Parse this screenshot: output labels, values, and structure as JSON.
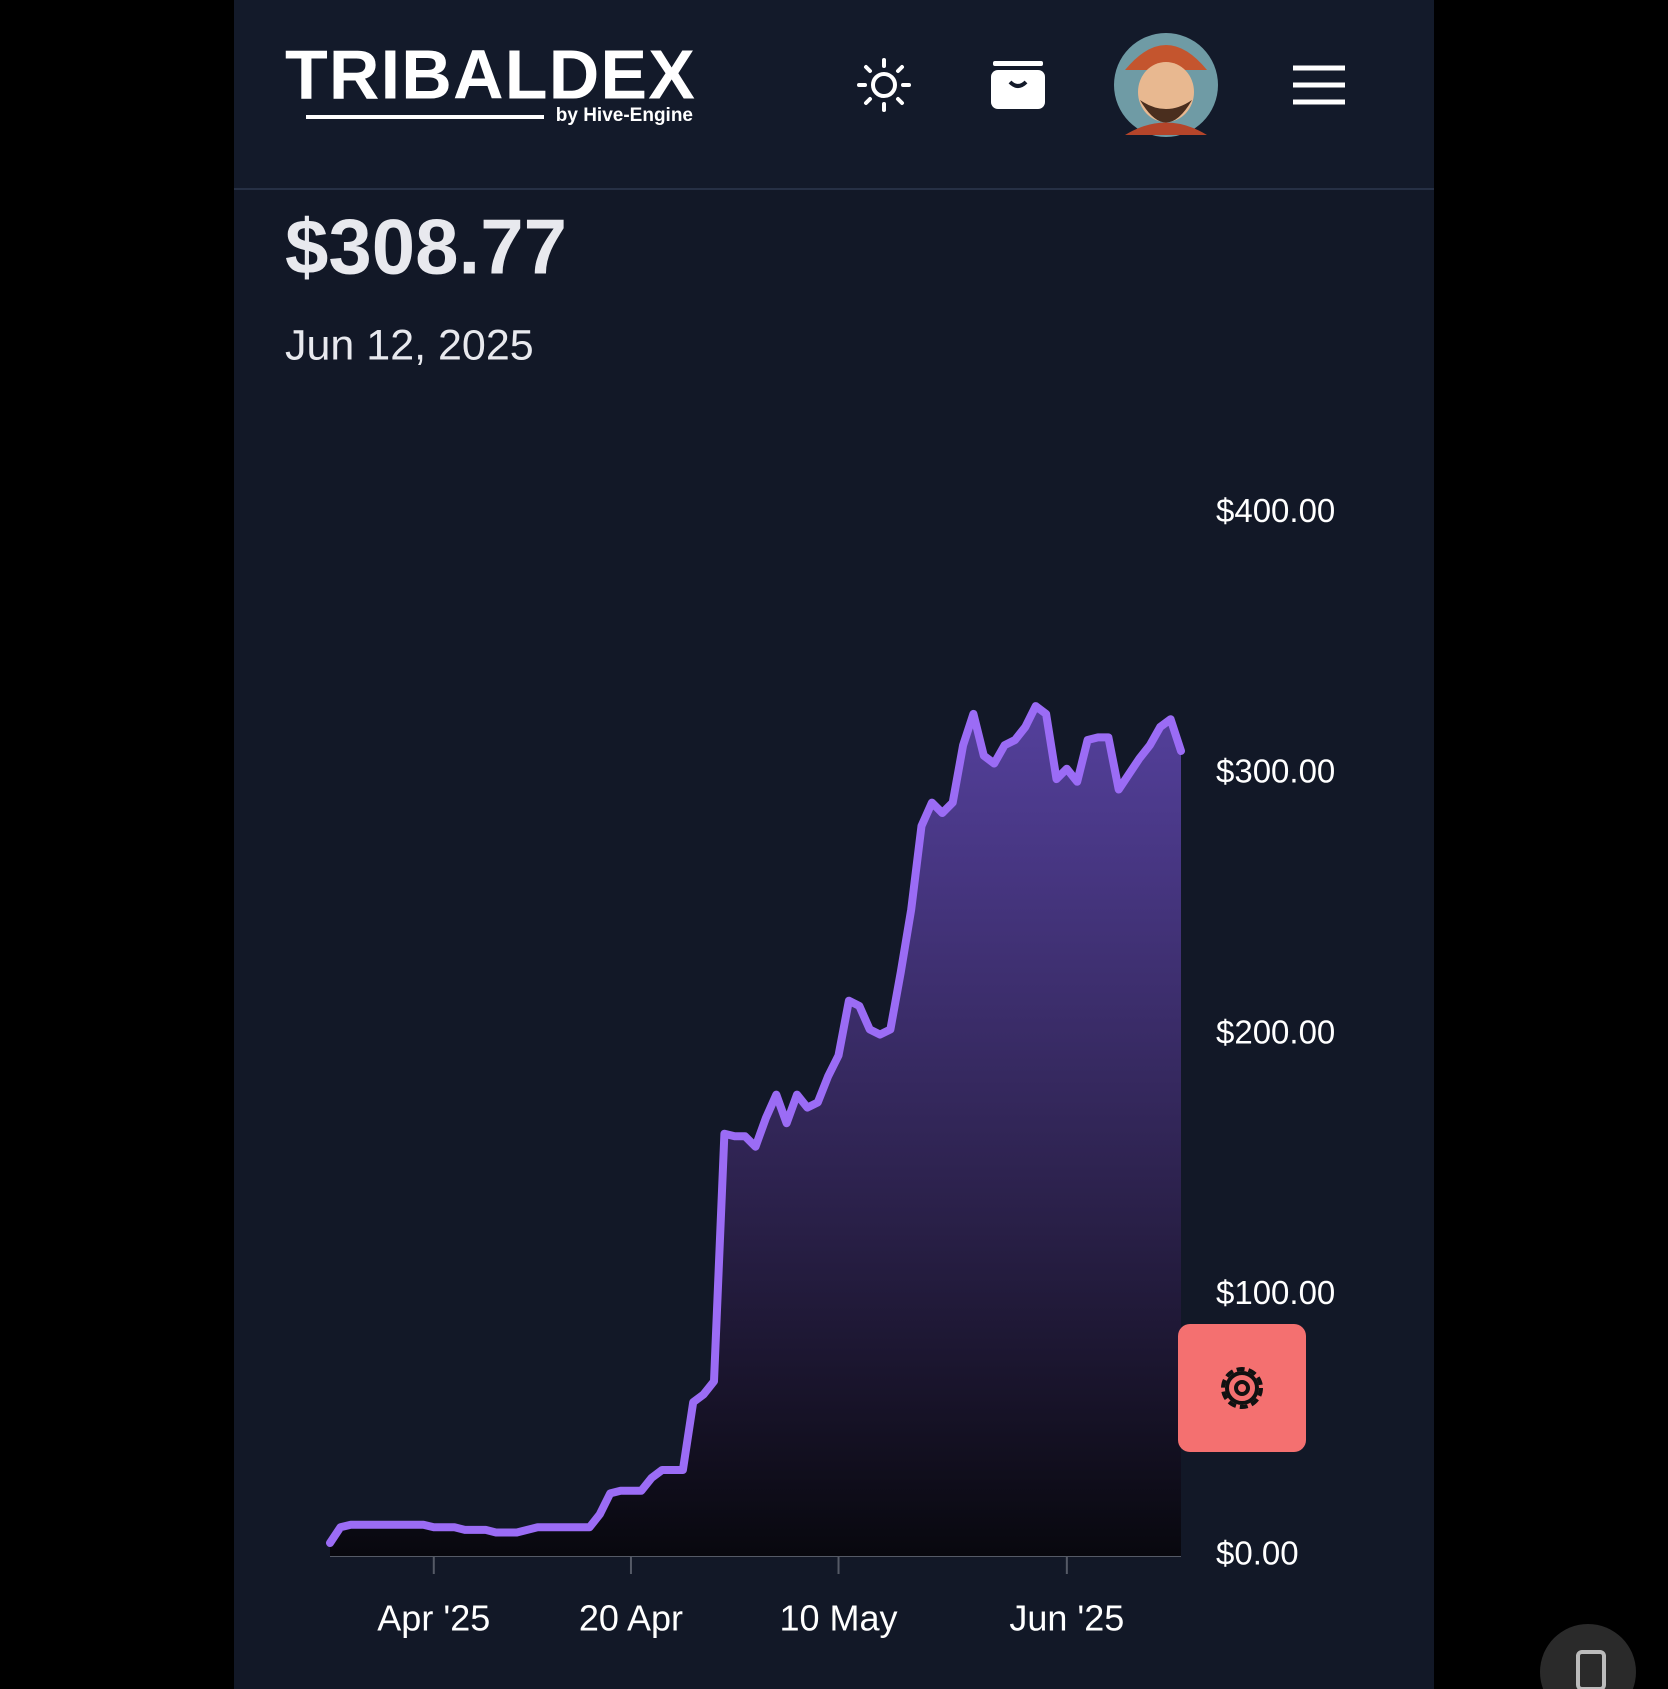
{
  "header": {
    "logo": "TRIBALDEX",
    "logo_sub": "by Hive-Engine"
  },
  "chart_data": {
    "type": "line",
    "title": "$308.77",
    "subtitle": "Jun 12, 2025",
    "color": "#9b6cf5",
    "x": [
      "2025-03-22",
      "2025-03-23",
      "2025-03-24",
      "2025-03-25",
      "2025-03-26",
      "2025-03-27",
      "2025-03-28",
      "2025-03-29",
      "2025-03-30",
      "2025-03-31",
      "2025-04-01",
      "2025-04-02",
      "2025-04-03",
      "2025-04-04",
      "2025-04-05",
      "2025-04-06",
      "2025-04-07",
      "2025-04-08",
      "2025-04-09",
      "2025-04-10",
      "2025-04-11",
      "2025-04-12",
      "2025-04-13",
      "2025-04-14",
      "2025-04-15",
      "2025-04-16",
      "2025-04-17",
      "2025-04-18",
      "2025-04-19",
      "2025-04-20",
      "2025-04-21",
      "2025-04-22",
      "2025-04-23",
      "2025-04-24",
      "2025-04-25",
      "2025-04-26",
      "2025-04-27",
      "2025-04-28",
      "2025-04-29",
      "2025-04-30",
      "2025-05-01",
      "2025-05-02",
      "2025-05-03",
      "2025-05-04",
      "2025-05-05",
      "2025-05-06",
      "2025-05-07",
      "2025-05-08",
      "2025-05-09",
      "2025-05-10",
      "2025-05-11",
      "2025-05-12",
      "2025-05-13",
      "2025-05-14",
      "2025-05-15",
      "2025-05-16",
      "2025-05-17",
      "2025-05-18",
      "2025-05-19",
      "2025-05-20",
      "2025-05-21",
      "2025-05-22",
      "2025-05-23",
      "2025-05-24",
      "2025-05-25",
      "2025-05-26",
      "2025-05-27",
      "2025-05-28",
      "2025-05-29",
      "2025-05-30",
      "2025-05-31",
      "2025-06-01",
      "2025-06-02",
      "2025-06-03",
      "2025-06-04",
      "2025-06-05",
      "2025-06-06",
      "2025-06-07",
      "2025-06-08",
      "2025-06-09",
      "2025-06-10",
      "2025-06-11",
      "2025-06-12"
    ],
    "values": [
      5,
      11,
      12,
      12,
      12,
      12,
      12,
      12,
      12,
      12,
      11,
      11,
      11,
      10,
      10,
      10,
      9,
      9,
      9,
      10,
      11,
      11,
      11,
      11,
      11,
      11,
      16,
      24,
      25,
      25,
      25,
      30,
      33,
      33,
      33,
      59,
      62,
      67,
      162,
      161,
      161,
      157,
      168,
      177,
      166,
      177,
      172,
      174,
      184,
      192,
      213,
      211,
      202,
      200,
      202,
      224,
      248,
      280,
      289,
      285,
      289,
      311,
      323,
      307,
      304,
      311,
      313,
      318,
      326,
      323,
      298,
      302,
      297,
      313,
      314,
      314,
      294,
      300,
      306,
      311,
      318,
      321,
      308.77
    ],
    "xlim": [
      "2025-03-22",
      "2025-06-12"
    ],
    "xticks": [
      {
        "value": "2025-04-01",
        "label": "Apr '25"
      },
      {
        "value": "2025-04-20",
        "label": "20 Apr"
      },
      {
        "value": "2025-05-10",
        "label": "10 May"
      },
      {
        "value": "2025-06-01",
        "label": "Jun '25"
      }
    ],
    "ylim": [
      0,
      430
    ],
    "yticks": [
      {
        "value": 0,
        "label": "$0.00"
      },
      {
        "value": 100,
        "label": "$100.00"
      },
      {
        "value": 200,
        "label": "$200.00"
      },
      {
        "value": 300,
        "label": "$300.00"
      },
      {
        "value": 400,
        "label": "$400.00"
      }
    ]
  }
}
